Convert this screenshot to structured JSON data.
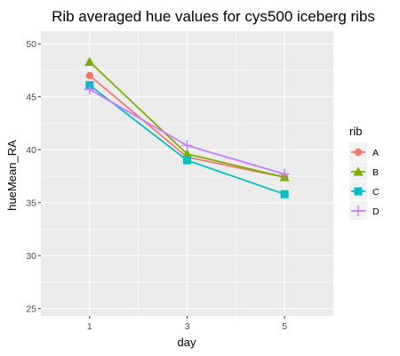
{
  "chart_data": {
    "type": "line",
    "title": "Rib averaged hue values for cys500 iceberg ribs",
    "xlabel": "day",
    "ylabel": "hueMean_RA",
    "x": [
      1,
      3,
      5
    ],
    "xlim": [
      0,
      6
    ],
    "ylim": [
      24.3,
      51.2
    ],
    "xticks": [
      "1",
      "3",
      "5"
    ],
    "yticks": [
      25,
      30,
      35,
      40,
      45,
      50
    ],
    "grid": true,
    "legend": {
      "title": "rib",
      "placement": "right"
    },
    "series": [
      {
        "name": "A",
        "values": [
          47.0,
          39.3,
          37.4
        ],
        "color": "#F8766D",
        "marker": "circle"
      },
      {
        "name": "B",
        "values": [
          48.3,
          39.6,
          37.4
        ],
        "color": "#7CAE00",
        "marker": "triangle"
      },
      {
        "name": "C",
        "values": [
          46.1,
          39.0,
          35.8
        ],
        "color": "#00BFC4",
        "marker": "square"
      },
      {
        "name": "D",
        "values": [
          45.7,
          40.4,
          37.7
        ],
        "color": "#C77CFF",
        "marker": "plus"
      }
    ]
  }
}
